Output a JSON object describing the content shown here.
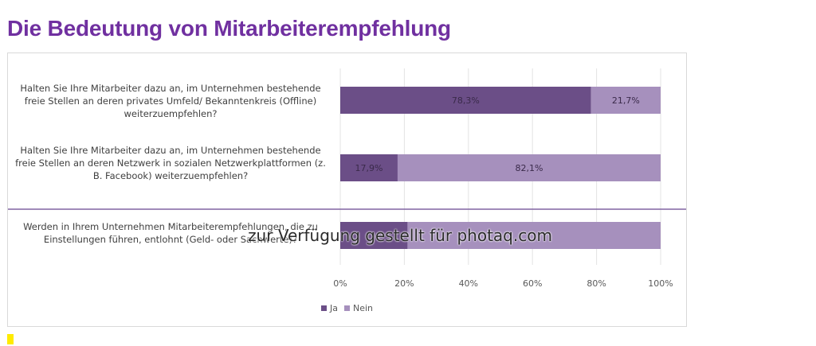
{
  "title": "Die Bedeutung von Mitarbeiterempfehlung",
  "watermark": "zur Verfügung gestellt für photaq.com",
  "colors": {
    "title": "#7030a0",
    "ja": "#6b4e87",
    "nein": "#a690bd",
    "separator": "#8064a2",
    "marker": "#ffeb00"
  },
  "chart_data": {
    "type": "bar",
    "orientation": "horizontal",
    "stacked": true,
    "categories": [
      "Halten Sie Ihre Mitarbeiter dazu an, im Unternehmen bestehende freie Stellen an deren privates Umfeld/ Bekanntenkreis (Offline) weiterzuempfehlen?",
      "Halten Sie Ihre Mitarbeiter dazu an, im Unternehmen bestehende freie Stellen an deren Netzwerk in sozialen Netzwerkplattformen (z. B. Facebook) weiterzuempfehlen?",
      "Werden in Ihrem Unternehmen Mitarbeiterempfehlungen, die zu Einstellungen führen, entlohnt (Geld- oder Sachwerte)?"
    ],
    "series": [
      {
        "name": "Ja",
        "values": [
          78.3,
          17.9,
          21.0
        ],
        "labels": [
          "78,3%",
          "17,9%",
          ""
        ]
      },
      {
        "name": "Nein",
        "values": [
          21.7,
          82.1,
          79.0
        ],
        "labels": [
          "21,7%",
          "82,1%",
          ""
        ]
      }
    ],
    "xlim": [
      0,
      100
    ],
    "x_ticks": [
      "0%",
      "20%",
      "40%",
      "60%",
      "80%",
      "100%"
    ],
    "grid": true,
    "legend": "bottom"
  }
}
